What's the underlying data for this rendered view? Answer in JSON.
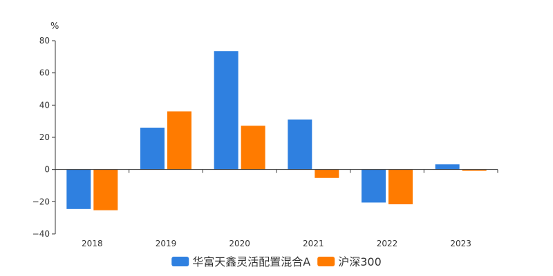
{
  "chart_data": {
    "type": "bar",
    "unit": "%",
    "categories": [
      "2018",
      "2019",
      "2020",
      "2021",
      "2022",
      "2023"
    ],
    "series": [
      {
        "name": "华富天鑫灵活配置混合A",
        "color": "#2f80e0",
        "values": [
          -24.5,
          26,
          73.5,
          31,
          -20.5,
          3.2
        ]
      },
      {
        "name": "沪深300",
        "color": "#ff7b00",
        "values": [
          -25.3,
          36.1,
          27.2,
          -5.2,
          -21.6,
          -0.8
        ]
      }
    ],
    "yticks": [
      -40,
      -20,
      0,
      20,
      40,
      60,
      80
    ],
    "ylim": [
      -40,
      80
    ],
    "grid": false,
    "legend_position": "bottom-center"
  }
}
